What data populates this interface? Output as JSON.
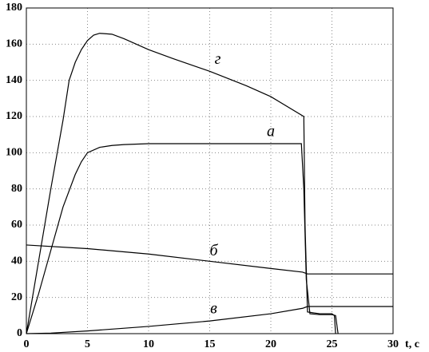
{
  "chart_data": {
    "type": "line",
    "x_label": "t, c",
    "xlim": [
      0,
      30
    ],
    "xticks": [
      0,
      5,
      10,
      15,
      20,
      25,
      30
    ],
    "ylim": [
      0,
      180
    ],
    "yticks": [
      0,
      20,
      40,
      60,
      80,
      100,
      120,
      140,
      160,
      180
    ],
    "grid": true,
    "series": [
      {
        "name": "г",
        "color": "#000000",
        "x": [
          0,
          1,
          2,
          3,
          3.5,
          4,
          4.5,
          5,
          5.5,
          6,
          7,
          8,
          10,
          12,
          15,
          18,
          20,
          22.7,
          22.8,
          23,
          24,
          25,
          25.2,
          25.3
        ],
        "values": [
          0,
          40,
          80,
          118,
          140,
          150,
          157,
          162,
          165,
          166,
          165.5,
          163,
          157,
          152,
          145,
          137,
          131,
          120,
          60,
          12,
          11,
          11,
          10,
          0
        ]
      },
      {
        "name": "а",
        "color": "#000000",
        "x": [
          0,
          1,
          2,
          3,
          4,
          4.5,
          5,
          6,
          7,
          8,
          10,
          15,
          20,
          22.5,
          22.7,
          22.9,
          23.2,
          24,
          25,
          25.3,
          25.5
        ],
        "values": [
          0,
          22,
          46,
          70,
          88,
          95,
          100,
          103,
          104,
          104.5,
          105,
          105,
          105,
          105,
          80,
          30,
          11,
          10.5,
          10.5,
          10,
          0
        ]
      },
      {
        "name": "б",
        "color": "#000000",
        "x": [
          0,
          5,
          10,
          15,
          20,
          22.6,
          23,
          30
        ],
        "values": [
          49,
          47,
          44,
          40,
          36,
          34,
          33,
          33
        ]
      },
      {
        "name": "в",
        "color": "#000000",
        "x": [
          0,
          2,
          5,
          10,
          15,
          20,
          22.6,
          23,
          30
        ],
        "values": [
          0,
          0.3,
          1.5,
          4,
          7,
          11,
          14,
          15,
          15
        ]
      }
    ]
  }
}
